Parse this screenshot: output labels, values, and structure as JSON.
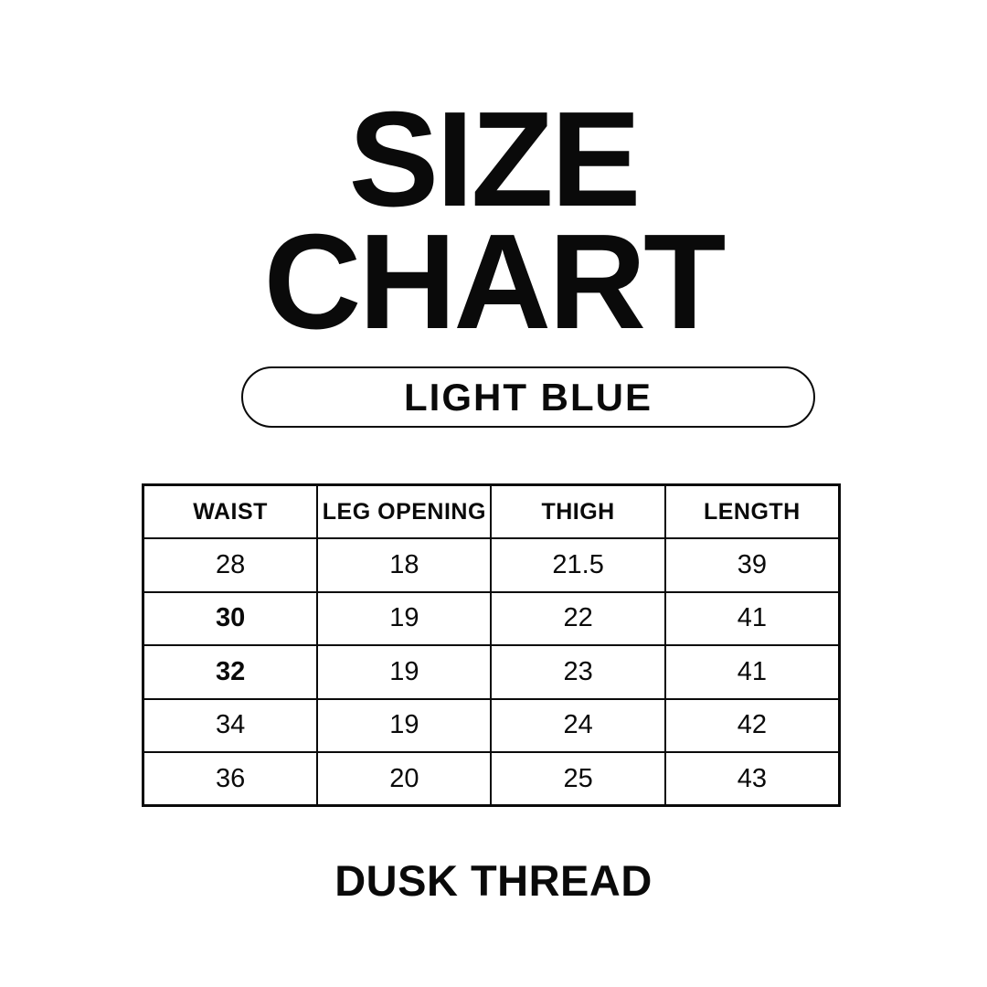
{
  "colors": {
    "background": "#ffffff",
    "ink": "#0a0a0a"
  },
  "title": {
    "line1": "SIZE",
    "line2": "CHART"
  },
  "badge": {
    "label": "LIGHT BLUE"
  },
  "brand": {
    "label": "DUSK THREAD"
  },
  "chart_data": {
    "type": "table",
    "title": "SIZE CHART",
    "subtitle": "LIGHT BLUE",
    "columns": [
      "WAIST",
      "LEG OPENING",
      "THIGH",
      "LENGTH"
    ],
    "rows": [
      [
        "28",
        "18",
        "21.5",
        "39"
      ],
      [
        "30",
        "19",
        "22",
        "41"
      ],
      [
        "32",
        "19",
        "23",
        "41"
      ],
      [
        "34",
        "19",
        "24",
        "42"
      ],
      [
        "36",
        "20",
        "25",
        "43"
      ]
    ],
    "emphasized_cells": [
      {
        "row": 1,
        "col": 0
      },
      {
        "row": 2,
        "col": 0
      }
    ]
  }
}
